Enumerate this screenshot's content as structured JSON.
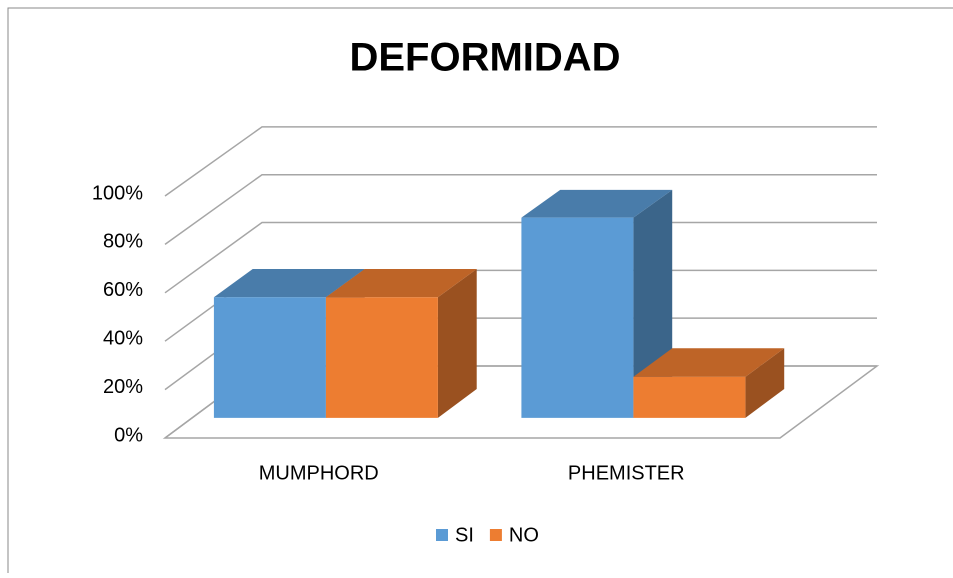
{
  "chart_data": {
    "type": "bar3d",
    "title": "DEFORMIDAD",
    "categories": [
      "MUMPHORD",
      "PHEMISTER"
    ],
    "series": [
      {
        "name": "SI",
        "color": "#5b9bd5",
        "values": [
          50,
          83
        ]
      },
      {
        "name": "NO",
        "color": "#ed7d31",
        "values": [
          50,
          17
        ]
      }
    ],
    "ylim": [
      0,
      100
    ],
    "yticks": [
      {
        "value": 0,
        "label": "0%"
      },
      {
        "value": 20,
        "label": "20%"
      },
      {
        "value": 40,
        "label": "40%"
      },
      {
        "value": 60,
        "label": "60%"
      },
      {
        "value": 80,
        "label": "80%"
      },
      {
        "value": 100,
        "label": "100%"
      }
    ],
    "grid": true,
    "legend": "bottom"
  }
}
